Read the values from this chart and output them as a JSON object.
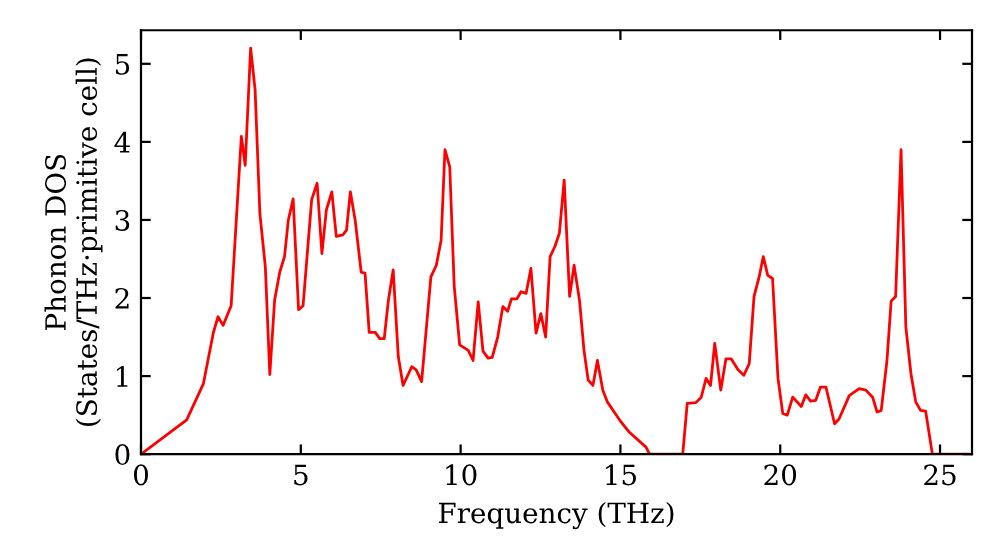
{
  "chart_data": {
    "type": "line",
    "xlabel": "Frequency (THz)",
    "ylabel": "Phonon DOS\n(States/THz·primitive cell)",
    "xlim": [
      0,
      26
    ],
    "ylim": [
      0,
      5.43
    ],
    "xticks": [
      0,
      5,
      10,
      15,
      20,
      25
    ],
    "yticks": [
      0,
      1,
      2,
      3,
      4,
      5
    ],
    "grid": false,
    "legend": false,
    "marker": "none",
    "line_style": "solid",
    "series": [
      {
        "color": "#ff0000",
        "x": [
          0,
          1.43,
          1.95,
          2.26,
          2.41,
          2.57,
          2.82,
          3.14,
          3.26,
          3.43,
          3.57,
          3.72,
          3.89,
          4.03,
          4.18,
          4.34,
          4.49,
          4.61,
          4.76,
          4.93,
          5.07,
          5.34,
          5.51,
          5.66,
          5.8,
          5.97,
          6.11,
          6.32,
          6.43,
          6.55,
          6.7,
          6.89,
          7.01,
          7.14,
          7.33,
          7.47,
          7.61,
          7.74,
          7.89,
          8.05,
          8.2,
          8.47,
          8.61,
          8.78,
          9.07,
          9.24,
          9.39,
          9.51,
          9.66,
          9.8,
          9.97,
          10.24,
          10.39,
          10.55,
          10.7,
          10.86,
          10.99,
          11.16,
          11.32,
          11.47,
          11.59,
          11.76,
          11.89,
          12.05,
          12.2,
          12.36,
          12.51,
          12.66,
          12.8,
          12.95,
          13.09,
          13.24,
          13.41,
          13.55,
          13.72,
          13.86,
          13.99,
          14.14,
          14.28,
          14.45,
          14.59,
          14.97,
          15.28,
          15.8,
          15.91,
          16.95,
          17.09,
          17.36,
          17.53,
          17.68,
          17.82,
          17.95,
          18.14,
          18.3,
          18.47,
          18.68,
          18.86,
          19.03,
          19.18,
          19.34,
          19.47,
          19.61,
          19.76,
          19.93,
          20.08,
          20.22,
          20.39,
          20.66,
          20.8,
          20.95,
          21.11,
          21.26,
          21.43,
          21.7,
          21.84,
          22.16,
          22.47,
          22.68,
          22.89,
          23.03,
          23.16,
          23.34,
          23.47,
          23.61,
          23.78,
          23.93,
          24.09,
          24.24,
          24.39,
          24.55,
          24.76,
          25.9
        ],
        "values": [
          0,
          0.44,
          0.9,
          1.55,
          1.76,
          1.65,
          1.9,
          4.07,
          3.7,
          5.2,
          4.67,
          3.08,
          2.4,
          1.02,
          1.97,
          2.33,
          2.53,
          3.0,
          3.27,
          1.85,
          1.9,
          3.26,
          3.47,
          2.57,
          3.13,
          3.36,
          2.79,
          2.81,
          2.87,
          3.36,
          3.0,
          2.33,
          2.32,
          1.56,
          1.56,
          1.48,
          1.48,
          1.97,
          2.36,
          1.25,
          0.88,
          1.12,
          1.08,
          0.93,
          2.27,
          2.42,
          2.74,
          3.9,
          3.68,
          2.15,
          1.4,
          1.33,
          1.2,
          1.95,
          1.32,
          1.23,
          1.24,
          1.5,
          1.89,
          1.83,
          1.99,
          1.99,
          2.08,
          2.06,
          2.38,
          1.55,
          1.8,
          1.5,
          2.53,
          2.66,
          2.83,
          3.51,
          2.02,
          2.42,
          1.97,
          1.33,
          0.95,
          0.88,
          1.2,
          0.82,
          0.67,
          0.44,
          0.28,
          0.09,
          0,
          0,
          0.65,
          0.66,
          0.73,
          0.97,
          0.88,
          1.42,
          0.82,
          1.22,
          1.22,
          1.08,
          1.01,
          1.16,
          2.02,
          2.27,
          2.53,
          2.29,
          2.25,
          0.97,
          0.52,
          0.5,
          0.73,
          0.61,
          0.76,
          0.68,
          0.69,
          0.86,
          0.86,
          0.39,
          0.45,
          0.75,
          0.84,
          0.82,
          0.73,
          0.54,
          0.56,
          1.2,
          1.96,
          2.02,
          3.9,
          1.63,
          1.03,
          0.67,
          0.56,
          0.55,
          0,
          0
        ]
      }
    ]
  }
}
